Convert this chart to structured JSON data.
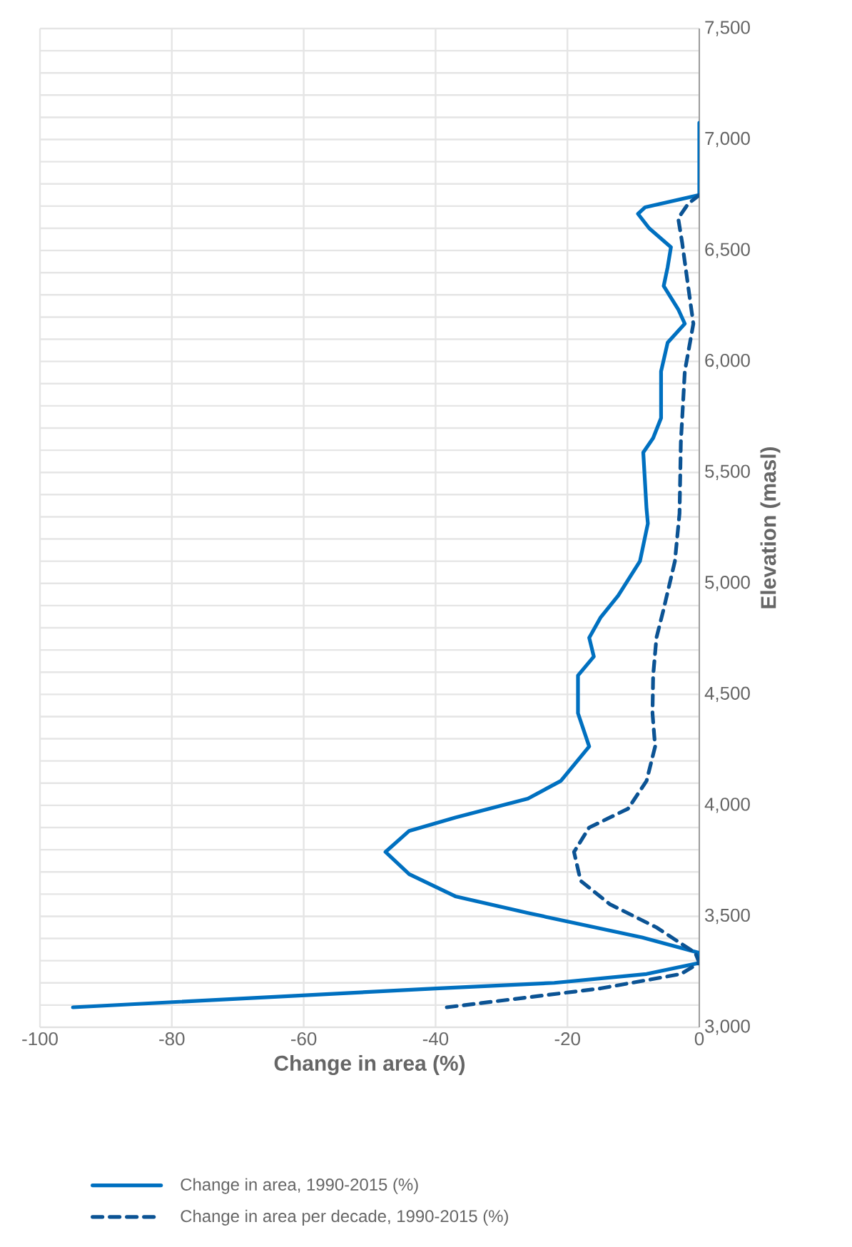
{
  "chart_data": {
    "type": "line",
    "xlabel": "Change in area (%)",
    "ylabel": "Elevation (masl)",
    "series": [
      {
        "name": "Change in area, 1990-2015 (%)",
        "color": "#0070c0",
        "line_style": "solid",
        "x": [
          -95,
          -40,
          -22,
          -8,
          0,
          0,
          -8.7,
          -26,
          -37,
          -44,
          -47.6,
          -44,
          -37,
          -26,
          -21,
          -16.7,
          -18.4,
          -18.4,
          -16,
          -16.7,
          -15,
          -12.3,
          -9,
          -7.8,
          -8,
          -8.5,
          -7,
          -5.8,
          -5.8,
          -4.8,
          -2.2,
          -3.2,
          -5.4,
          -4.8,
          -4.3,
          -7.6,
          -9.3,
          -8.2,
          0,
          0
        ],
        "values": [
          3090,
          3175,
          3200,
          3240,
          3290,
          3335,
          3405,
          3515,
          3590,
          3690,
          3790,
          3885,
          3945,
          4030,
          4110,
          4265,
          4415,
          4585,
          4670,
          4755,
          4845,
          4945,
          5100,
          5270,
          5335,
          5590,
          5655,
          5745,
          5955,
          6085,
          6170,
          6235,
          6340,
          6425,
          6515,
          6600,
          6665,
          6695,
          6750,
          7075
        ]
      },
      {
        "name": "Change in area per decade, 1990-2015 (%)",
        "color": "#0b5394",
        "line_style": "dashed",
        "x": [
          -38.3,
          -15,
          -2.8,
          0,
          -0.6,
          -6.5,
          -13.6,
          -18,
          -19,
          -16.7,
          -10.8,
          -8,
          -6.7,
          -7.1,
          -7,
          -6.5,
          -5.4,
          -3.7,
          -3,
          -2.8,
          -2.2,
          -0.9,
          -1.7,
          -2.6,
          -3.2,
          -1.7,
          0
        ],
        "values": [
          3090,
          3175,
          3240,
          3290,
          3335,
          3450,
          3555,
          3660,
          3790,
          3900,
          3985,
          4110,
          4265,
          4415,
          4585,
          4755,
          4885,
          5100,
          5315,
          5635,
          5955,
          6170,
          6340,
          6535,
          6645,
          6710,
          6750
        ]
      }
    ],
    "xlim": [
      -100,
      0
    ],
    "xticks": [
      -100,
      -80,
      -60,
      -40,
      -20,
      0
    ],
    "ylim": [
      3000,
      7500
    ],
    "yticks": [
      {
        "value": 3000,
        "label": "3,000"
      },
      {
        "value": 3100,
        "label": null
      },
      {
        "value": 3200,
        "label": null
      },
      {
        "value": 3300,
        "label": null
      },
      {
        "value": 3400,
        "label": null
      },
      {
        "value": 3500,
        "label": "3,500"
      },
      {
        "value": 3600,
        "label": null
      },
      {
        "value": 3700,
        "label": null
      },
      {
        "value": 3800,
        "label": null
      },
      {
        "value": 3900,
        "label": null
      },
      {
        "value": 4000,
        "label": "4,000"
      },
      {
        "value": 4100,
        "label": null
      },
      {
        "value": 4200,
        "label": null
      },
      {
        "value": 4300,
        "label": null
      },
      {
        "value": 4400,
        "label": null
      },
      {
        "value": 4500,
        "label": "4,500"
      },
      {
        "value": 4600,
        "label": null
      },
      {
        "value": 4700,
        "label": null
      },
      {
        "value": 4800,
        "label": null
      },
      {
        "value": 4900,
        "label": null
      },
      {
        "value": 5000,
        "label": "5,000"
      },
      {
        "value": 5100,
        "label": null
      },
      {
        "value": 5200,
        "label": null
      },
      {
        "value": 5300,
        "label": null
      },
      {
        "value": 5400,
        "label": null
      },
      {
        "value": 5500,
        "label": "5,500"
      },
      {
        "value": 5600,
        "label": null
      },
      {
        "value": 5700,
        "label": null
      },
      {
        "value": 5800,
        "label": null
      },
      {
        "value": 5900,
        "label": null
      },
      {
        "value": 6000,
        "label": "6,000"
      },
      {
        "value": 6100,
        "label": null
      },
      {
        "value": 6200,
        "label": null
      },
      {
        "value": 6300,
        "label": null
      },
      {
        "value": 6400,
        "label": null
      },
      {
        "value": 6500,
        "label": "6,500"
      },
      {
        "value": 6600,
        "label": null
      },
      {
        "value": 6700,
        "label": null
      },
      {
        "value": 6800,
        "label": null
      },
      {
        "value": 6900,
        "label": null
      },
      {
        "value": 7000,
        "label": "7,000"
      },
      {
        "value": 7100,
        "label": null
      },
      {
        "value": 7200,
        "label": null
      },
      {
        "value": 7300,
        "label": null
      },
      {
        "value": 7400,
        "label": null
      },
      {
        "value": 7500,
        "label": "7,500"
      }
    ],
    "grid": true,
    "legend": "bottom",
    "marker": "none"
  }
}
